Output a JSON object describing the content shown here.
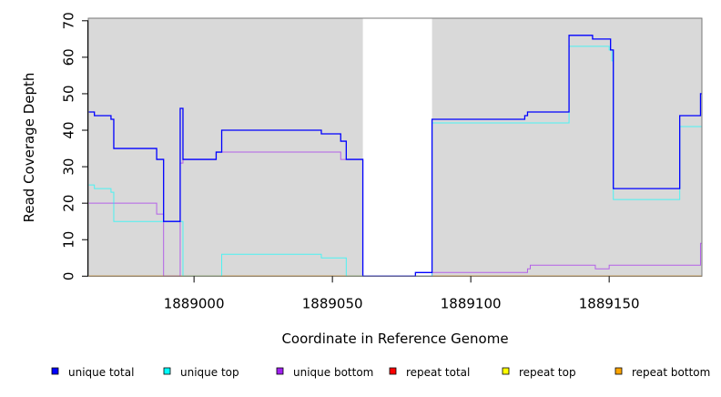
{
  "chart_data": {
    "type": "line",
    "title": "",
    "xlabel": "Coordinate in Reference Genome",
    "ylabel": "Read Coverage Depth",
    "xlim": [
      1888961.8,
      1889183.5
    ],
    "ylim": [
      0,
      70.7
    ],
    "x_ticks": [
      1889000,
      1889050,
      1889100,
      1889150
    ],
    "x_tick_labels": [
      "1889000",
      "1889050",
      "1889100",
      "1889150"
    ],
    "y_ticks": [
      0,
      10,
      20,
      30,
      40,
      50,
      60,
      70
    ],
    "y_tick_labels": [
      "0",
      "10",
      "20",
      "30",
      "40",
      "50",
      "60",
      "70"
    ],
    "shaded_regions": [
      [
        1888961.8,
        1889061
      ],
      [
        1889086,
        1889183.5
      ]
    ],
    "shade_color": "#d9d9d9",
    "step_style": "step-post",
    "legend_position": "bottom",
    "series": [
      {
        "name": "unique total",
        "color": "#0000ff",
        "steps": [
          [
            1888962,
            45
          ],
          [
            1888964,
            44
          ],
          [
            1888970,
            43
          ],
          [
            1888971,
            35
          ],
          [
            1888986.5,
            32
          ],
          [
            1888989,
            15
          ],
          [
            1888995,
            46
          ],
          [
            1888996,
            32
          ],
          [
            1889008,
            34
          ],
          [
            1889010,
            40
          ],
          [
            1889046,
            39
          ],
          [
            1889053,
            37
          ],
          [
            1889055,
            32
          ],
          [
            1889061,
            0
          ],
          [
            1889080,
            1
          ],
          [
            1889086,
            43
          ],
          [
            1889119.5,
            44
          ],
          [
            1889120.5,
            45
          ],
          [
            1889135.5,
            66
          ],
          [
            1889144,
            65
          ],
          [
            1889150.5,
            62
          ],
          [
            1889151.5,
            24
          ],
          [
            1889175.5,
            44
          ],
          [
            1889183,
            50
          ]
        ]
      },
      {
        "name": "unique top",
        "color": "#00ffff",
        "steps": [
          [
            1888962,
            25
          ],
          [
            1888964,
            24
          ],
          [
            1888970,
            23
          ],
          [
            1888971,
            15
          ],
          [
            1888996,
            0
          ],
          [
            1889010,
            6
          ],
          [
            1889046,
            5
          ],
          [
            1889055,
            0
          ],
          [
            1889086,
            42
          ],
          [
            1889135.5,
            63
          ],
          [
            1889150,
            62
          ],
          [
            1889151,
            59
          ],
          [
            1889151.5,
            21
          ],
          [
            1889175.5,
            41
          ]
        ]
      },
      {
        "name": "unique bottom",
        "color": "#a020f0",
        "steps": [
          [
            1888962,
            20
          ],
          [
            1888986.5,
            17
          ],
          [
            1888989,
            0
          ],
          [
            1888995,
            31
          ],
          [
            1888996,
            32
          ],
          [
            1889008,
            34
          ],
          [
            1889053,
            32
          ],
          [
            1889061,
            0
          ],
          [
            1889086,
            1
          ],
          [
            1889120.5,
            2
          ],
          [
            1889121.5,
            3
          ],
          [
            1889145,
            2
          ],
          [
            1889150,
            3
          ],
          [
            1889183,
            9
          ]
        ]
      },
      {
        "name": "repeat total",
        "color": "#ff0000",
        "steps": [
          [
            1888962,
            0
          ]
        ]
      },
      {
        "name": "repeat top",
        "color": "#ffff00",
        "steps": [
          [
            1888962,
            0
          ]
        ]
      },
      {
        "name": "repeat bottom",
        "color": "#ffa500",
        "steps": [
          [
            1888962,
            0
          ]
        ]
      }
    ]
  }
}
